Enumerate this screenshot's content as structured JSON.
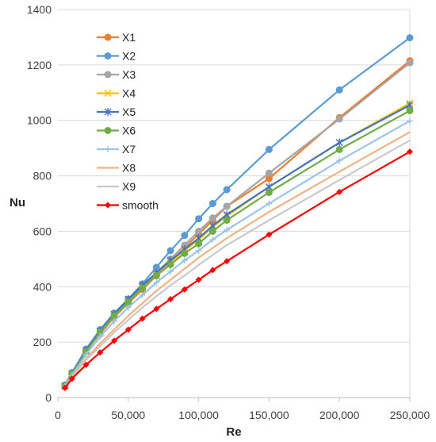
{
  "chart_data": {
    "type": "line",
    "title": "",
    "xlabel": "Re",
    "ylabel": "Nu",
    "xlim": [
      0,
      250000
    ],
    "ylim": [
      0,
      1400
    ],
    "x_ticks": [
      0,
      50000,
      100000,
      150000,
      200000,
      250000
    ],
    "x_tick_labels": [
      "0",
      "50,000",
      "100,000",
      "150,000",
      "200,000",
      "250,000"
    ],
    "y_ticks": [
      0,
      200,
      400,
      600,
      800,
      1000,
      1200,
      1400
    ],
    "y_tick_labels": [
      "0",
      "200",
      "400",
      "600",
      "800",
      "1000",
      "1200",
      "1400"
    ],
    "grid": "horizontal",
    "legend_position": "top-left",
    "series": [
      {
        "name": "X1",
        "color": "#ED7D31",
        "marker": "circle",
        "x": [
          5000,
          10000,
          20000,
          30000,
          40000,
          50000,
          60000,
          70000,
          80000,
          90000,
          100000,
          110000,
          120000,
          150000,
          200000,
          250000
        ],
        "y": [
          40,
          85,
          170,
          230,
          290,
          340,
          390,
          440,
          490,
          540,
          590,
          640,
          690,
          790,
          1010,
          1215
        ]
      },
      {
        "name": "X2",
        "color": "#5B9BD5",
        "marker": "circle",
        "x": [
          5000,
          10000,
          20000,
          30000,
          40000,
          50000,
          60000,
          70000,
          80000,
          90000,
          100000,
          110000,
          120000,
          150000,
          200000,
          250000
        ],
        "y": [
          45,
          90,
          175,
          245,
          305,
          355,
          410,
          470,
          530,
          585,
          645,
          700,
          750,
          895,
          1110,
          1298
        ]
      },
      {
        "name": "X3",
        "color": "#A5A5A5",
        "marker": "circle",
        "x": [
          5000,
          10000,
          20000,
          30000,
          40000,
          50000,
          60000,
          70000,
          80000,
          90000,
          100000,
          110000,
          120000,
          150000,
          200000,
          250000
        ],
        "y": [
          42,
          87,
          165,
          235,
          295,
          345,
          400,
          450,
          500,
          550,
          600,
          648,
          690,
          810,
          1005,
          1208
        ]
      },
      {
        "name": "X4",
        "color": "#FFC000",
        "marker": "x",
        "x": [
          5000,
          10000,
          20000,
          30000,
          40000,
          50000,
          60000,
          70000,
          80000,
          90000,
          100000,
          110000,
          120000,
          150000,
          200000,
          250000
        ],
        "y": [
          42,
          85,
          165,
          235,
          295,
          345,
          395,
          440,
          485,
          530,
          570,
          615,
          655,
          760,
          920,
          1062
        ]
      },
      {
        "name": "X5",
        "color": "#4472C4",
        "marker": "star",
        "x": [
          5000,
          10000,
          20000,
          30000,
          40000,
          50000,
          60000,
          70000,
          80000,
          90000,
          100000,
          110000,
          120000,
          150000,
          200000,
          250000
        ],
        "y": [
          42,
          87,
          170,
          240,
          300,
          355,
          405,
          450,
          495,
          535,
          575,
          620,
          660,
          760,
          920,
          1055
        ]
      },
      {
        "name": "X6",
        "color": "#70AD47",
        "marker": "circle",
        "x": [
          5000,
          10000,
          20000,
          30000,
          40000,
          50000,
          60000,
          70000,
          80000,
          90000,
          100000,
          110000,
          120000,
          150000,
          200000,
          250000
        ],
        "y": [
          42,
          85,
          165,
          235,
          295,
          345,
          395,
          440,
          480,
          520,
          555,
          600,
          640,
          740,
          895,
          1035
        ]
      },
      {
        "name": "X7",
        "color": "#9DC3E6",
        "marker": "plus",
        "x": [
          5000,
          10000,
          20000,
          30000,
          40000,
          50000,
          60000,
          70000,
          80000,
          90000,
          100000,
          110000,
          120000,
          150000,
          200000,
          250000
        ],
        "y": [
          40,
          80,
          155,
          220,
          275,
          325,
          370,
          415,
          455,
          495,
          530,
          570,
          605,
          700,
          855,
          998
        ]
      },
      {
        "name": "X8",
        "color": "#F4B183",
        "marker": "none",
        "x": [
          5000,
          10000,
          20000,
          30000,
          40000,
          50000,
          60000,
          70000,
          80000,
          90000,
          100000,
          110000,
          120000,
          150000,
          200000,
          250000
        ],
        "y": [
          38,
          75,
          140,
          195,
          245,
          295,
          340,
          385,
          425,
          465,
          505,
          540,
          575,
          670,
          815,
          958
        ]
      },
      {
        "name": "X9",
        "color": "#C9C9C9",
        "marker": "none",
        "x": [
          5000,
          10000,
          20000,
          30000,
          40000,
          50000,
          60000,
          70000,
          80000,
          90000,
          100000,
          110000,
          120000,
          150000,
          200000,
          250000
        ],
        "y": [
          36,
          72,
          135,
          185,
          235,
          280,
          325,
          365,
          405,
          440,
          478,
          515,
          550,
          640,
          785,
          928
        ]
      },
      {
        "name": "smooth",
        "color": "#FF0000",
        "marker": "diamond",
        "x": [
          5000,
          10000,
          20000,
          30000,
          40000,
          50000,
          60000,
          70000,
          80000,
          90000,
          100000,
          110000,
          120000,
          150000,
          200000,
          250000
        ],
        "y": [
          35,
          68,
          118,
          163,
          205,
          245,
          285,
          320,
          355,
          390,
          425,
          460,
          492,
          588,
          742,
          887
        ]
      }
    ]
  }
}
